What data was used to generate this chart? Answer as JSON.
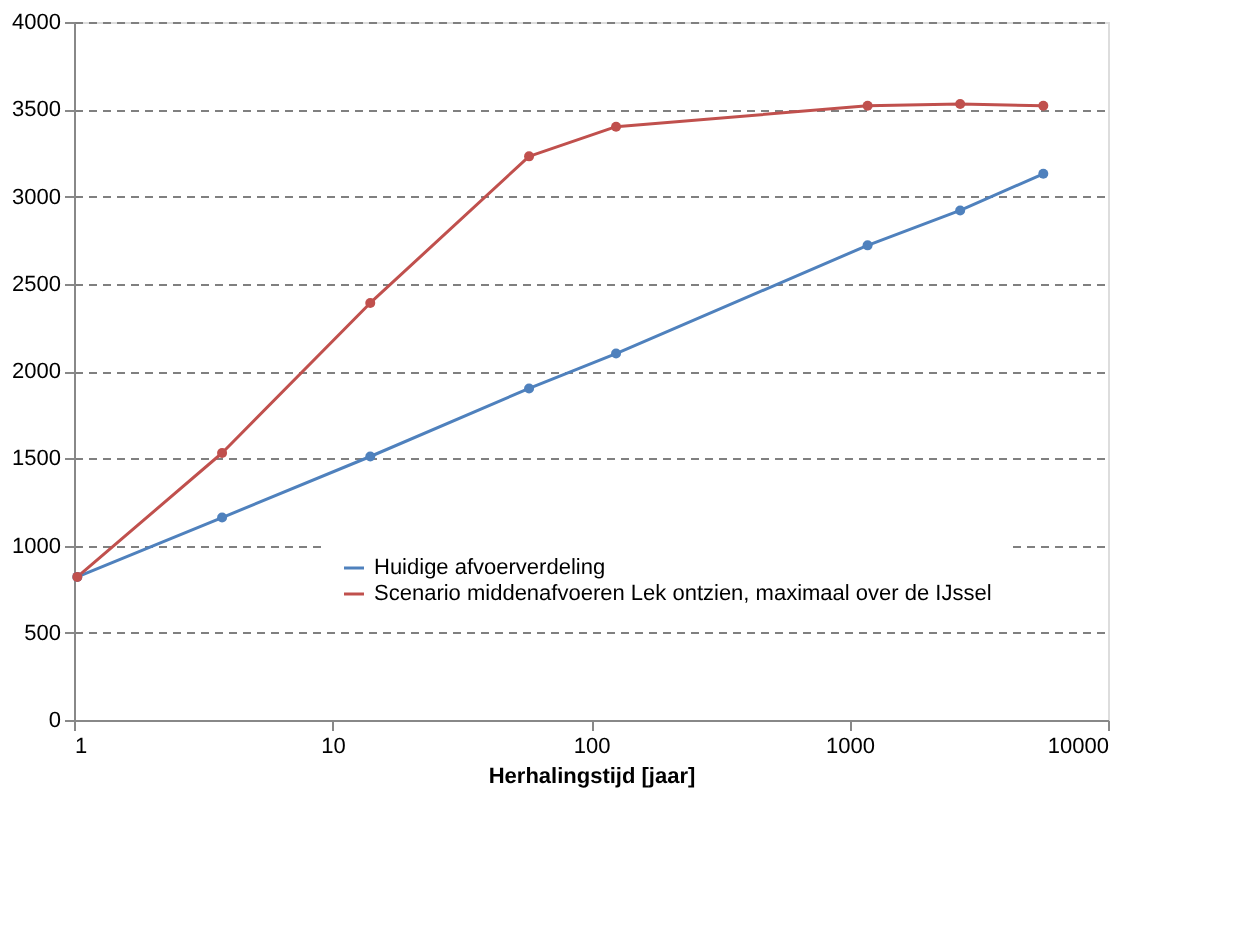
{
  "chart_data": {
    "type": "line",
    "xlabel": "Herhalingstijd [jaar]",
    "log": "x",
    "x": [
      1.03,
      3.74,
      14,
      57.6,
      125,
      1175,
      2680,
      5620
    ],
    "series": [
      {
        "name": "Huidige afvoerverdeling",
        "color": "#4f81bd",
        "values": [
          820,
          1160,
          1510,
          1900,
          2100,
          2720,
          2920,
          3130
        ]
      },
      {
        "name": "Scenario middenafvoeren Lek ontzien, maximaal over de IJssel",
        "color": "#c0504d",
        "values": [
          820,
          1530,
          2390,
          3230,
          3400,
          3520,
          3530,
          3520
        ]
      }
    ],
    "xlim": [
      1,
      10000
    ],
    "xticks": [
      1,
      10,
      100,
      1000,
      10000
    ],
    "ylim": [
      0,
      4000
    ],
    "yticks": [
      0,
      500,
      1000,
      1500,
      2000,
      2500,
      3000,
      3500,
      4000
    ],
    "grid": "y",
    "legend": "bottom right",
    "marker": "circle",
    "line_style": "solid"
  }
}
